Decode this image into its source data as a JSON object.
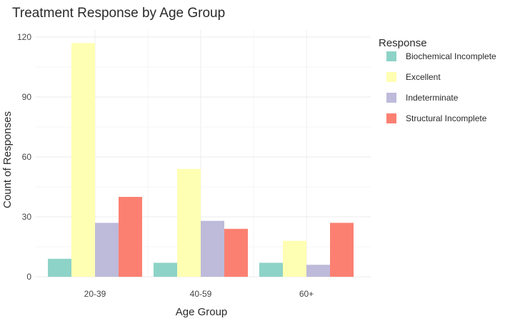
{
  "chart_data": {
    "type": "bar",
    "title": "Treatment Response by Age Group",
    "xlabel": "Age Group",
    "ylabel": "Count of Responses",
    "categories": [
      "20-39",
      "40-59",
      "60+"
    ],
    "ylim": [
      0,
      122
    ],
    "yticks": [
      0,
      30,
      60,
      90,
      120
    ],
    "grid": true,
    "legend": {
      "title": "Response",
      "placement": "right"
    },
    "series": [
      {
        "name": "Biochemical Incomplete",
        "color": "#8dd3c7",
        "values": [
          9,
          7,
          7
        ]
      },
      {
        "name": "Excellent",
        "color": "#ffffb3",
        "values": [
          117,
          54,
          18
        ]
      },
      {
        "name": "Indeterminate",
        "color": "#bebada",
        "values": [
          27,
          28,
          6
        ]
      },
      {
        "name": "Structural Incomplete",
        "color": "#fb8072",
        "values": [
          40,
          24,
          27
        ]
      }
    ]
  }
}
